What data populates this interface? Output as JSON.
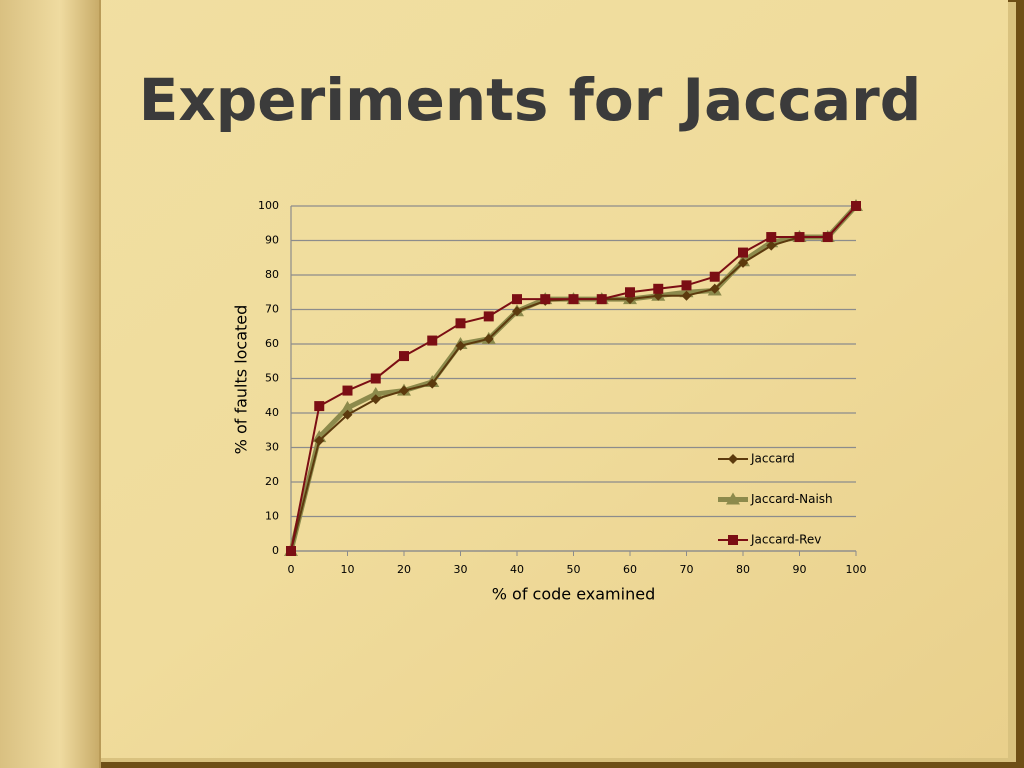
{
  "chart_data": {
    "type": "line",
    "title": "Experiments for Jaccard",
    "x_label": "% of code examined",
    "y_label": "% of faults located",
    "x": [
      0,
      5,
      10,
      15,
      20,
      25,
      30,
      35,
      40,
      45,
      50,
      55,
      60,
      65,
      70,
      75,
      80,
      85,
      90,
      95,
      100
    ],
    "series": [
      {
        "name": "Jaccard",
        "color": "#5c3a0e",
        "marker": "diamond",
        "values": [
          0,
          32,
          39.5,
          44,
          46.5,
          48.5,
          59.5,
          61.5,
          69.5,
          72.5,
          73,
          73,
          73,
          74,
          74,
          76,
          83.5,
          88.5,
          91,
          91,
          100
        ]
      },
      {
        "name": "Jaccard-Naish",
        "color": "#8c8a4c",
        "marker": "triangle",
        "values": [
          0,
          33,
          41.5,
          45.5,
          46.5,
          49,
          60,
          61.5,
          69.5,
          73,
          73,
          73,
          73,
          74,
          75,
          75.5,
          84,
          89.5,
          91,
          91,
          100
        ]
      },
      {
        "name": "Jaccard-Rev",
        "color": "#7b0e14",
        "marker": "square",
        "values": [
          0,
          42,
          46.5,
          50,
          56.5,
          61,
          66,
          68,
          73,
          73,
          73,
          73,
          75,
          76,
          77,
          79.5,
          86.5,
          91,
          91,
          91,
          100
        ]
      }
    ],
    "xlim": [
      0,
      100
    ],
    "xticks": [
      0,
      10,
      20,
      30,
      40,
      50,
      60,
      70,
      80,
      90,
      100
    ],
    "ylim": [
      0,
      100
    ],
    "yticks": [
      0,
      10,
      20,
      30,
      40,
      50,
      60,
      70,
      80,
      90,
      100
    ],
    "grid": true,
    "legend": "lower right"
  }
}
